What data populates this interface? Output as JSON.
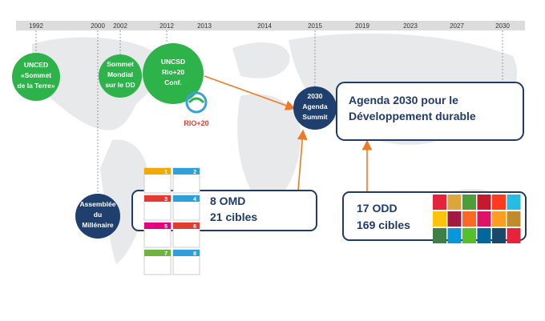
{
  "timeline": {
    "years": [
      "1992",
      "2000",
      "2002",
      "2012",
      "2013",
      "2014",
      "2015",
      "2019",
      "2023",
      "2027",
      "2030"
    ]
  },
  "events": [
    {
      "lines": [
        "UNCED",
        "«Sommet",
        "de la Terre»"
      ]
    },
    {
      "lines": [
        "Sommet",
        "Mondial",
        "sur le DD"
      ]
    },
    {
      "lines": [
        "UNCSD",
        "Rio+20",
        "Conf."
      ]
    },
    {
      "lines": [
        "2030",
        "Agenda",
        "Summit"
      ]
    },
    {
      "lines": [
        "Assemblée",
        "du",
        "Millénaire"
      ]
    }
  ],
  "logo": "RIO+20",
  "boxes": [
    {
      "lines": [
        "Agenda 2030 pour le",
        "Développement durable"
      ]
    },
    {
      "lines": [
        "8 OMD",
        "21 cibles"
      ]
    },
    {
      "lines": [
        "17 ODD",
        "169 cibles"
      ]
    }
  ],
  "mdg_icons": [
    "1",
    "2",
    "3",
    "4",
    "5",
    "6",
    "7",
    "8"
  ]
}
